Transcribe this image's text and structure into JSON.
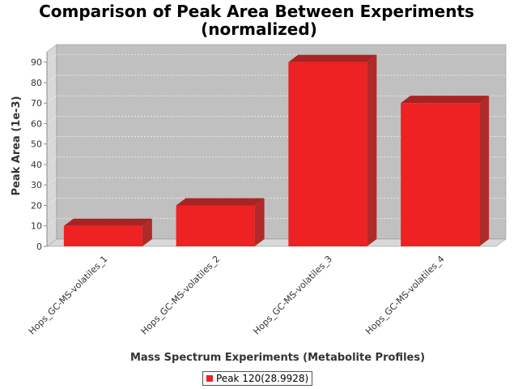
{
  "chart_data": {
    "type": "bar",
    "title": "Comparison of Peak Area Between Experiments",
    "subtitle": "(normalized)",
    "xlabel": "Mass Spectrum Experiments (Metabolite Profiles)",
    "ylabel": "Peak Area (1e-3)",
    "categories": [
      "Hops_GC-MS-volatiles_1",
      "Hops_GC-MS-volatiles_2",
      "Hops_GC-MS-volatiles_3",
      "Hops_GC-MS-volatiles_4"
    ],
    "series": [
      {
        "name": "Peak 120(28.9928)",
        "values": [
          10,
          20,
          90,
          70
        ],
        "color": "#ee2222"
      }
    ],
    "ylim": [
      0,
      95
    ],
    "yticks": [
      "0",
      "10",
      "20",
      "30",
      "40",
      "50",
      "60",
      "70",
      "80",
      "90"
    ],
    "grid": true,
    "legend": "bottom-center",
    "plot_background": "#c0c0c0",
    "style": "3d"
  }
}
